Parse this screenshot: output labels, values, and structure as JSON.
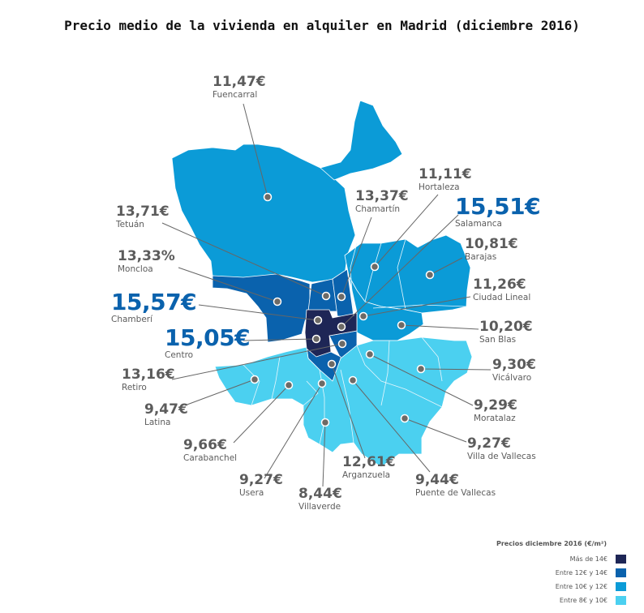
{
  "title": "Precio medio de la vivienda en alquiler en Madrid (diciembre 2016)",
  "colors": {
    "mas_14": "#1e2656",
    "12_14": "#0a62ad",
    "10_12": "#0b9bd7",
    "8_10": "#4bd0f0",
    "label_text": "#5c5c5c",
    "highlight_value": "#0a62ad"
  },
  "districts": [
    {
      "name": "Fuencarral",
      "value": "11,47€"
    },
    {
      "name": "Hortaleza",
      "value": "11,11€"
    },
    {
      "name": "Chamartín",
      "value": "13,37€"
    },
    {
      "name": "Salamanca",
      "value": "15,51€"
    },
    {
      "name": "Tetuán",
      "value": "13,71€"
    },
    {
      "name": "Barajas",
      "value": "10,81€"
    },
    {
      "name": "Moncloa",
      "value": "13,33%"
    },
    {
      "name": "Ciudad Lineal",
      "value": "11,26€"
    },
    {
      "name": "Chamberí",
      "value": "15,57€"
    },
    {
      "name": "San Blas",
      "value": "10,20€"
    },
    {
      "name": "Centro",
      "value": "15,05€"
    },
    {
      "name": "Vicálvaro",
      "value": "9,30€"
    },
    {
      "name": "Retiro",
      "value": "13,16€"
    },
    {
      "name": "Moratalaz",
      "value": "9,29€"
    },
    {
      "name": "Latina",
      "value": "9,47€"
    },
    {
      "name": "Villa de Vallecas",
      "value": "9,27€"
    },
    {
      "name": "Carabanchel",
      "value": "9,66€"
    },
    {
      "name": "Arganzuela",
      "value": "12,61€"
    },
    {
      "name": "Usera",
      "value": "9,27€"
    },
    {
      "name": "Puente de Vallecas",
      "value": "9,44€"
    },
    {
      "name": "Villaverde",
      "value": "8,44€"
    }
  ],
  "legend": {
    "title": "Precios diciembre 2016 (€/m²)",
    "items": [
      {
        "label": "Más de 14€",
        "color": "#1e2656"
      },
      {
        "label": "Entre 12€ y 14€",
        "color": "#0a62ad"
      },
      {
        "label": "Entre 10€ y 12€",
        "color": "#0b9bd7"
      },
      {
        "label": "Entre 8€ y 10€",
        "color": "#4bd0f0"
      }
    ]
  }
}
